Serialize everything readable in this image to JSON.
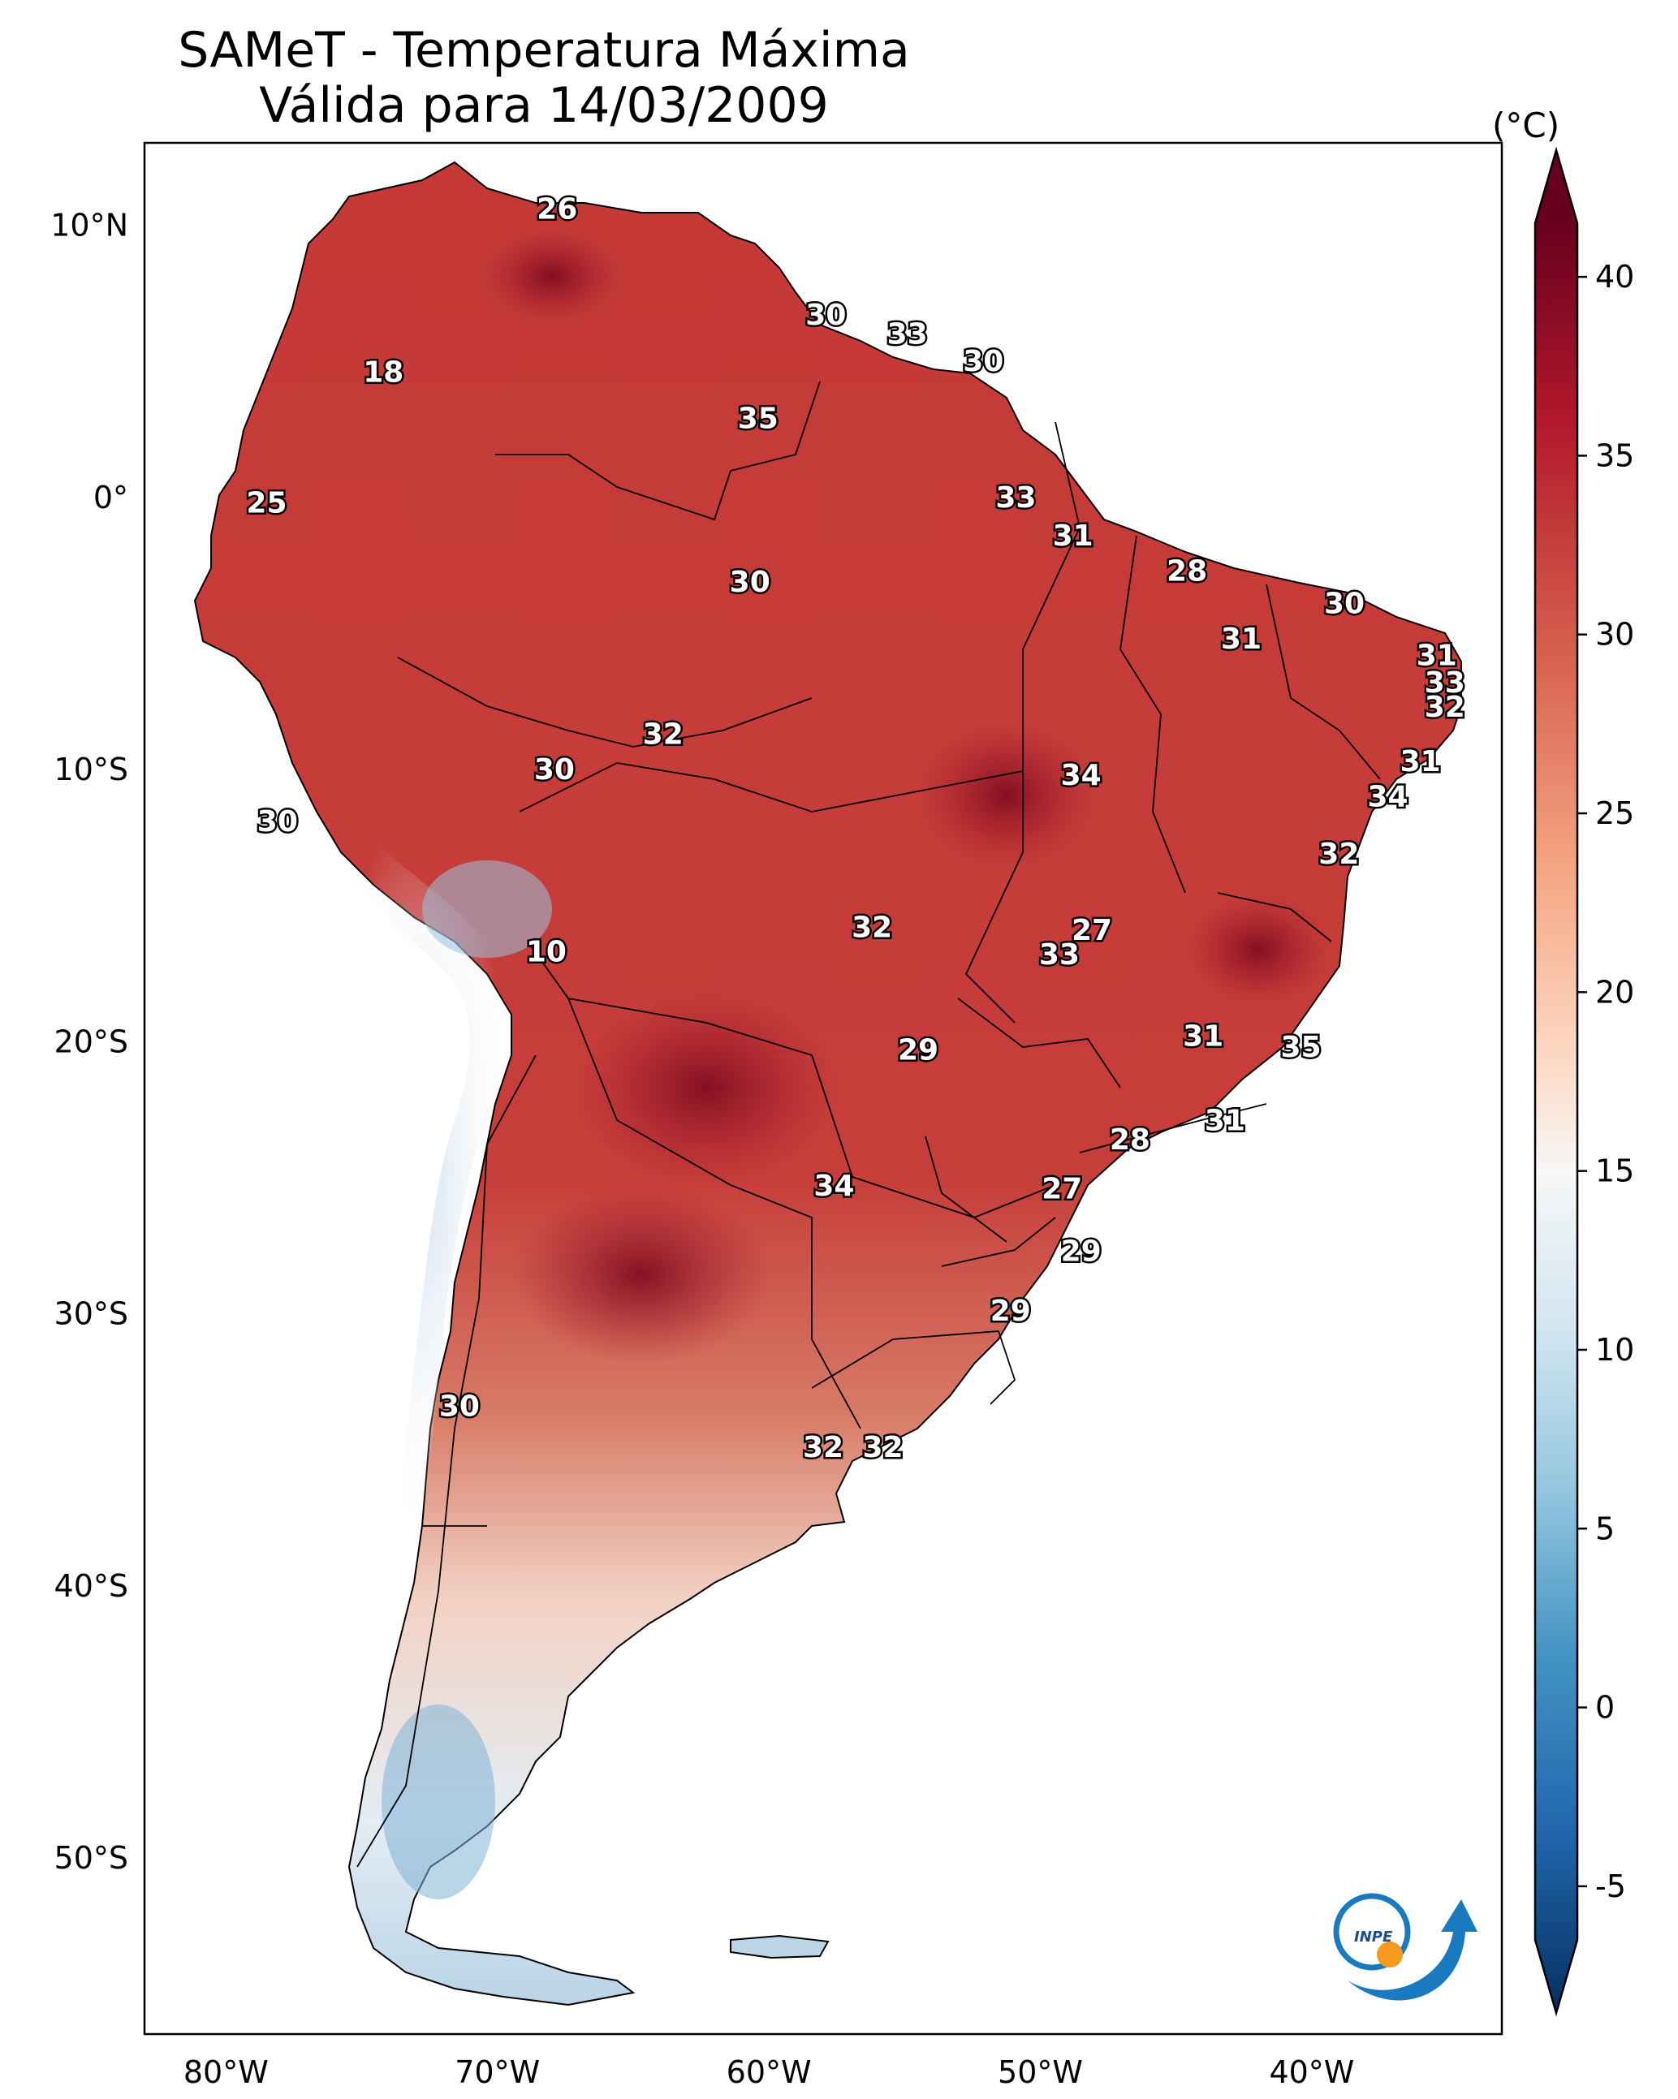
{
  "title": {
    "line1": "SAMeT - Temperatura Máxima",
    "line2": "Válida para 14/03/2009"
  },
  "colorbar": {
    "unit": "(°C)",
    "ticks": [
      "40",
      "35",
      "30",
      "25",
      "20",
      "15",
      "10",
      "5",
      "0",
      "-5"
    ],
    "min": -7,
    "max": 42,
    "colors": [
      "#67001f",
      "#b2182b",
      "#d6604d",
      "#f4a582",
      "#fddbc7",
      "#f7f7f7",
      "#d1e5f0",
      "#92c5de",
      "#4393c3",
      "#2166ac",
      "#053061"
    ]
  },
  "axes": {
    "lon_labels": [
      "80°W",
      "70°W",
      "60°W",
      "50°W",
      "40°W"
    ],
    "lat_labels": [
      "10°N",
      "0°",
      "10°S",
      "20°S",
      "30°S",
      "40°S",
      "50°S"
    ]
  },
  "map_labels": [
    {
      "text": "26",
      "lon": -67.8,
      "lat": 10.6
    },
    {
      "text": "18",
      "lon": -74.2,
      "lat": 4.6
    },
    {
      "text": "30",
      "lon": -57.9,
      "lat": 6.7
    },
    {
      "text": "33",
      "lon": -54.9,
      "lat": 6.0
    },
    {
      "text": "30",
      "lon": -52.1,
      "lat": 5.0
    },
    {
      "text": "35",
      "lon": -60.4,
      "lat": 2.9
    },
    {
      "text": "33",
      "lon": -50.9,
      "lat": 0.0
    },
    {
      "text": "25",
      "lon": -78.5,
      "lat": -0.2
    },
    {
      "text": "31",
      "lon": -48.8,
      "lat": -1.4
    },
    {
      "text": "28",
      "lon": -44.6,
      "lat": -2.7
    },
    {
      "text": "30",
      "lon": -60.7,
      "lat": -3.1
    },
    {
      "text": "30",
      "lon": -38.8,
      "lat": -3.9
    },
    {
      "text": "31",
      "lon": -42.6,
      "lat": -5.2
    },
    {
      "text": "31",
      "lon": -35.4,
      "lat": -5.8
    },
    {
      "text": "33",
      "lon": -35.1,
      "lat": -6.8
    },
    {
      "text": "32",
      "lon": -35.1,
      "lat": -7.7
    },
    {
      "text": "32",
      "lon": -63.9,
      "lat": -8.7
    },
    {
      "text": "31",
      "lon": -36.0,
      "lat": -9.7
    },
    {
      "text": "30",
      "lon": -67.9,
      "lat": -10.0
    },
    {
      "text": "34",
      "lon": -48.5,
      "lat": -10.2
    },
    {
      "text": "34",
      "lon": -37.2,
      "lat": -11.0
    },
    {
      "text": "30",
      "lon": -78.1,
      "lat": -11.9
    },
    {
      "text": "32",
      "lon": -39.0,
      "lat": -13.1
    },
    {
      "text": "27",
      "lon": -48.1,
      "lat": -15.9
    },
    {
      "text": "32",
      "lon": -56.2,
      "lat": -15.8
    },
    {
      "text": "33",
      "lon": -49.3,
      "lat": -16.8
    },
    {
      "text": "10",
      "lon": -68.2,
      "lat": -16.7
    },
    {
      "text": "31",
      "lon": -44.0,
      "lat": -19.8
    },
    {
      "text": "29",
      "lon": -54.5,
      "lat": -20.3
    },
    {
      "text": "35",
      "lon": -40.4,
      "lat": -20.2
    },
    {
      "text": "31",
      "lon": -43.2,
      "lat": -22.9
    },
    {
      "text": "28",
      "lon": -46.7,
      "lat": -23.6
    },
    {
      "text": "34",
      "lon": -57.6,
      "lat": -25.3
    },
    {
      "text": "27",
      "lon": -49.2,
      "lat": -25.4
    },
    {
      "text": "29",
      "lon": -48.5,
      "lat": -27.7
    },
    {
      "text": "29",
      "lon": -51.1,
      "lat": -29.9
    },
    {
      "text": "30",
      "lon": -71.4,
      "lat": -33.4
    },
    {
      "text": "32",
      "lon": -58.0,
      "lat": -34.9
    },
    {
      "text": "32",
      "lon": -55.8,
      "lat": -34.9
    }
  ],
  "logo": {
    "text": "INPE"
  }
}
